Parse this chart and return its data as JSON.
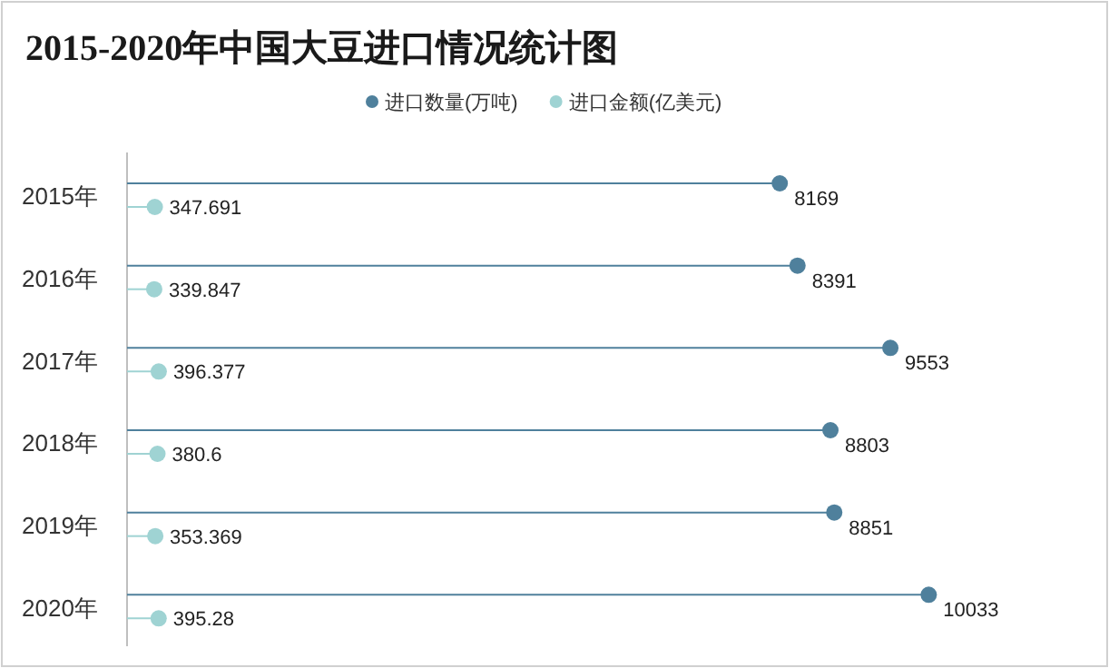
{
  "chart_data": {
    "type": "lollipop",
    "title": "2015-2020年中国大豆进口情况统计图",
    "orientation": "horizontal",
    "categories": [
      "2015年",
      "2016年",
      "2017年",
      "2018年",
      "2019年",
      "2020年"
    ],
    "series": [
      {
        "name": "进口数量(万吨)",
        "color": "#4f809c",
        "values": [
          8169,
          8391,
          9553,
          8803,
          8851,
          10033
        ]
      },
      {
        "name": "进口金额(亿美元)",
        "color": "#9fd3d3",
        "values": [
          347.691,
          339.847,
          396.377,
          380.6,
          353.369,
          395.28
        ]
      }
    ],
    "tick_labels": "y",
    "data_labels": true,
    "legend": "top",
    "marker": "circle"
  }
}
